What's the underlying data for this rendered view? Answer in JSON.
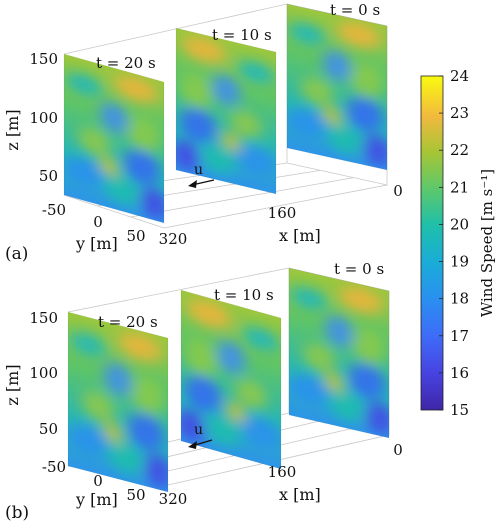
{
  "chart_data": {
    "type": "heatmap",
    "colormap": "parula",
    "colorbar": {
      "label": "Wind Speed [m s⁻¹]",
      "range": [
        15,
        24
      ],
      "ticks": [
        "15",
        "16",
        "17",
        "18",
        "19",
        "20",
        "21",
        "22",
        "23",
        "24"
      ]
    },
    "panels": [
      {
        "label": "(a)",
        "slices": [
          {
            "label": "t = 20 s",
            "x": 320
          },
          {
            "label": "t = 10 s",
            "x": 160
          },
          {
            "label": "t = 0 s",
            "x": 0
          }
        ],
        "arrow_label": "u",
        "axes": {
          "x": {
            "label": "x [m]",
            "ticks": [
              "0",
              "160",
              "320"
            ]
          },
          "y": {
            "label": "y [m]",
            "ticks": [
              "-50",
              "0",
              "50"
            ]
          },
          "z": {
            "label": "z [m]",
            "ticks": [
              "50",
              "100",
              "150"
            ]
          }
        }
      },
      {
        "label": "(b)",
        "slices": [
          {
            "label": "t = 20 s",
            "x": 320
          },
          {
            "label": "t = 10 s",
            "x": 160
          },
          {
            "label": "t = 0 s",
            "x": 0
          }
        ],
        "arrow_label": "u",
        "axes": {
          "x": {
            "label": "x [m]",
            "ticks": [
              "0",
              "160"
            ]
          },
          "y": {
            "label": "y [m]",
            "ticks": [
              "-50",
              "0",
              "50"
            ]
          },
          "z": {
            "label": "z [m]",
            "ticks": [
              "50",
              "100",
              "150"
            ]
          }
        }
      }
    ]
  }
}
